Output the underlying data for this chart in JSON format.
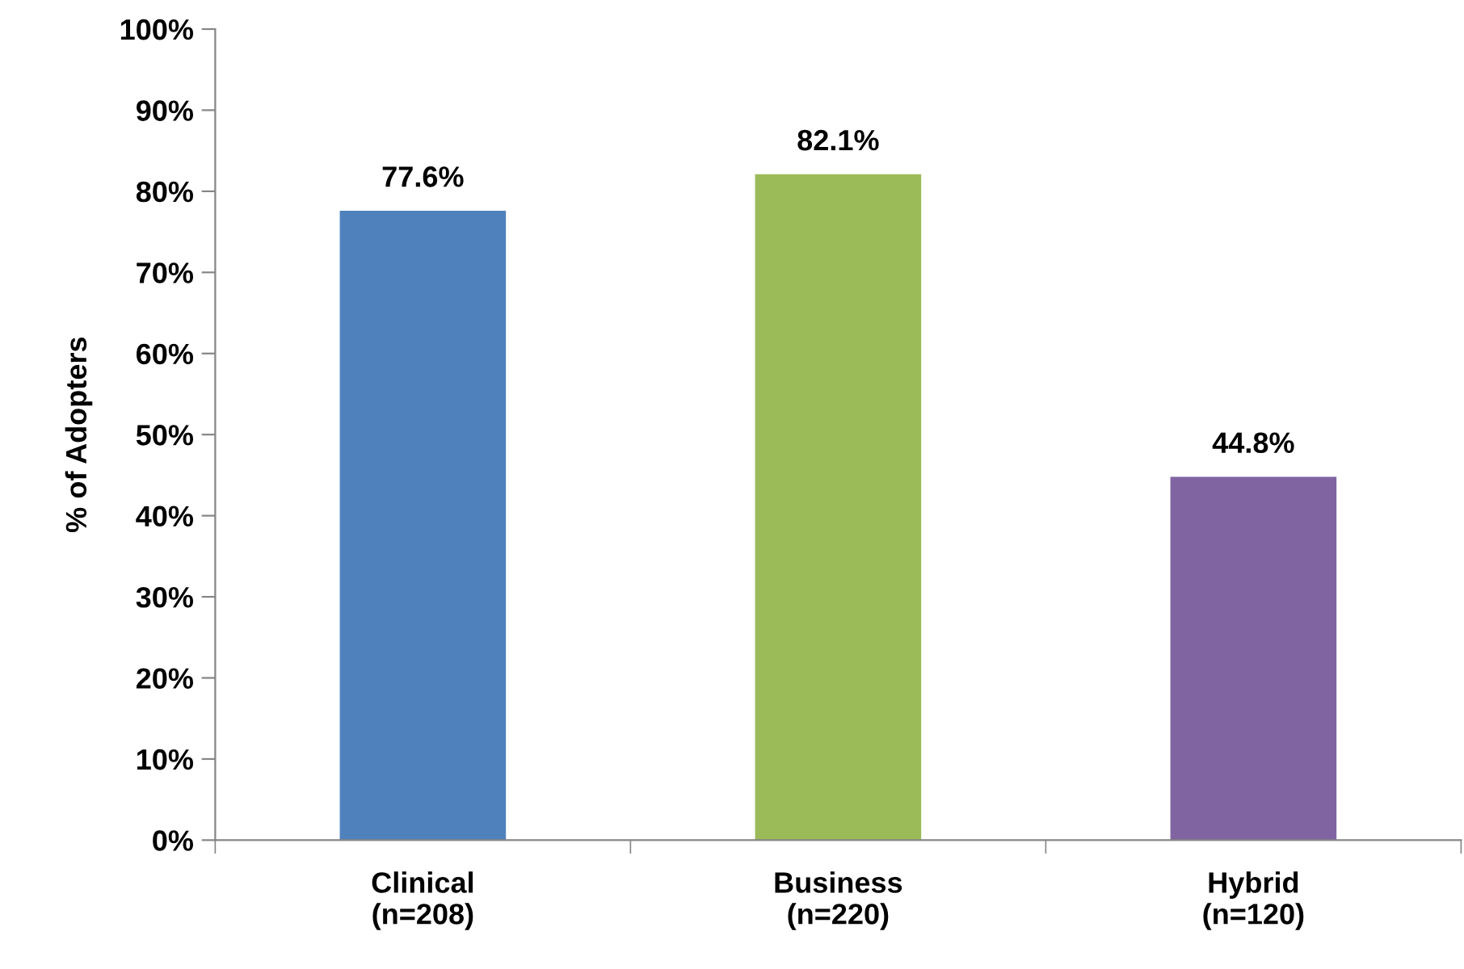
{
  "chart_data": {
    "type": "bar",
    "ylabel": "% of Adopters",
    "categories": [
      "Clinical\n(n=208)",
      "Business\n(n=220)",
      "Hybrid\n(n=120)"
    ],
    "values": [
      77.6,
      82.1,
      44.8
    ],
    "colors": [
      "#4f81bd",
      "#9bbb59",
      "#8064a2"
    ],
    "value_labels": [
      "77.6%",
      "82.1%",
      "44.8%"
    ],
    "ylim": [
      0,
      100
    ],
    "yticks": [
      {
        "value": 0,
        "label": "0%"
      },
      {
        "value": 10,
        "label": "10%"
      },
      {
        "value": 20,
        "label": "20%"
      },
      {
        "value": 30,
        "label": "30%"
      },
      {
        "value": 40,
        "label": "40%"
      },
      {
        "value": 50,
        "label": "50%"
      },
      {
        "value": 60,
        "label": "60%"
      },
      {
        "value": 70,
        "label": "70%"
      },
      {
        "value": 80,
        "label": "80%"
      },
      {
        "value": 90,
        "label": "90%"
      },
      {
        "value": 100,
        "label": "100%"
      }
    ],
    "grid": false,
    "legend": false
  }
}
